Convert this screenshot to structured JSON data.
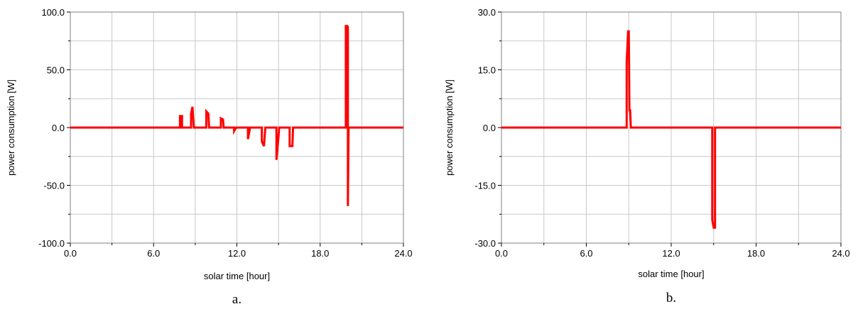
{
  "colors": {
    "series": "#ff0000",
    "grid": "#c8c8c8",
    "frame": "#808080"
  },
  "chart_data": [
    {
      "type": "line",
      "panel_label": "a.",
      "xlabel": "solar time [hour]",
      "ylabel": "power consumption [W]",
      "xlim": [
        0,
        24
      ],
      "ylim": [
        -100,
        100
      ],
      "xticks": [
        0,
        6,
        12,
        18,
        24
      ],
      "yticks": [
        -100,
        -50,
        0,
        50,
        100
      ],
      "xtick_labels": [
        "0.0",
        "6.0",
        "12.0",
        "18.0",
        "24.0"
      ],
      "ytick_labels": [
        "-100.0",
        "-50.0",
        "0.0",
        "50.0",
        "100.0"
      ],
      "grid": true,
      "series": [
        {
          "values": [
            [
              0,
              0
            ],
            [
              7.9,
              0
            ],
            [
              7.9,
              10
            ],
            [
              8.05,
              10
            ],
            [
              8.05,
              0
            ],
            [
              8.7,
              0
            ],
            [
              8.7,
              12
            ],
            [
              8.8,
              18
            ],
            [
              8.9,
              0
            ],
            [
              9.8,
              0
            ],
            [
              9.8,
              14
            ],
            [
              9.95,
              12
            ],
            [
              10.0,
              0
            ],
            [
              10.85,
              0
            ],
            [
              10.85,
              8
            ],
            [
              11.0,
              7
            ],
            [
              11.05,
              0
            ],
            [
              11.8,
              0
            ],
            [
              11.8,
              -3
            ],
            [
              11.95,
              0
            ],
            [
              12.8,
              0
            ],
            [
              12.8,
              -10
            ],
            [
              12.95,
              0
            ],
            [
              13.8,
              0
            ],
            [
              13.8,
              -12
            ],
            [
              13.95,
              -16
            ],
            [
              14.05,
              0
            ],
            [
              14.85,
              0
            ],
            [
              14.85,
              -28
            ],
            [
              15.0,
              -8
            ],
            [
              15.05,
              0
            ],
            [
              15.8,
              0
            ],
            [
              15.8,
              -16
            ],
            [
              16.0,
              -16
            ],
            [
              16.05,
              0
            ],
            [
              19.85,
              0
            ],
            [
              19.85,
              88
            ],
            [
              19.95,
              88
            ],
            [
              20.0,
              87
            ],
            [
              20.0,
              -68
            ],
            [
              20.05,
              0
            ],
            [
              24,
              0
            ]
          ]
        }
      ]
    },
    {
      "type": "line",
      "panel_label": "b.",
      "xlabel": "solar time [hour]",
      "ylabel": "power consumption [W]",
      "xlim": [
        0,
        24
      ],
      "ylim": [
        -30,
        30
      ],
      "xticks": [
        0,
        6,
        12,
        18,
        24
      ],
      "yticks": [
        -30,
        -15,
        0,
        15,
        30
      ],
      "xtick_labels": [
        "0.0",
        "6.0",
        "12.0",
        "18.0",
        "24.0"
      ],
      "ytick_labels": [
        "-30.0",
        "-15.0",
        "0.0",
        "15.0",
        "30.0"
      ],
      "grid": true,
      "series": [
        {
          "values": [
            [
              0,
              0
            ],
            [
              8.85,
              0
            ],
            [
              8.85,
              17
            ],
            [
              8.95,
              25
            ],
            [
              9.0,
              25
            ],
            [
              9.05,
              4.5
            ],
            [
              9.1,
              4.5
            ],
            [
              9.15,
              0
            ],
            [
              14.9,
              0
            ],
            [
              14.9,
              -24
            ],
            [
              15.0,
              -26
            ],
            [
              15.1,
              -26
            ],
            [
              15.1,
              0
            ],
            [
              24,
              0
            ]
          ]
        }
      ]
    }
  ]
}
